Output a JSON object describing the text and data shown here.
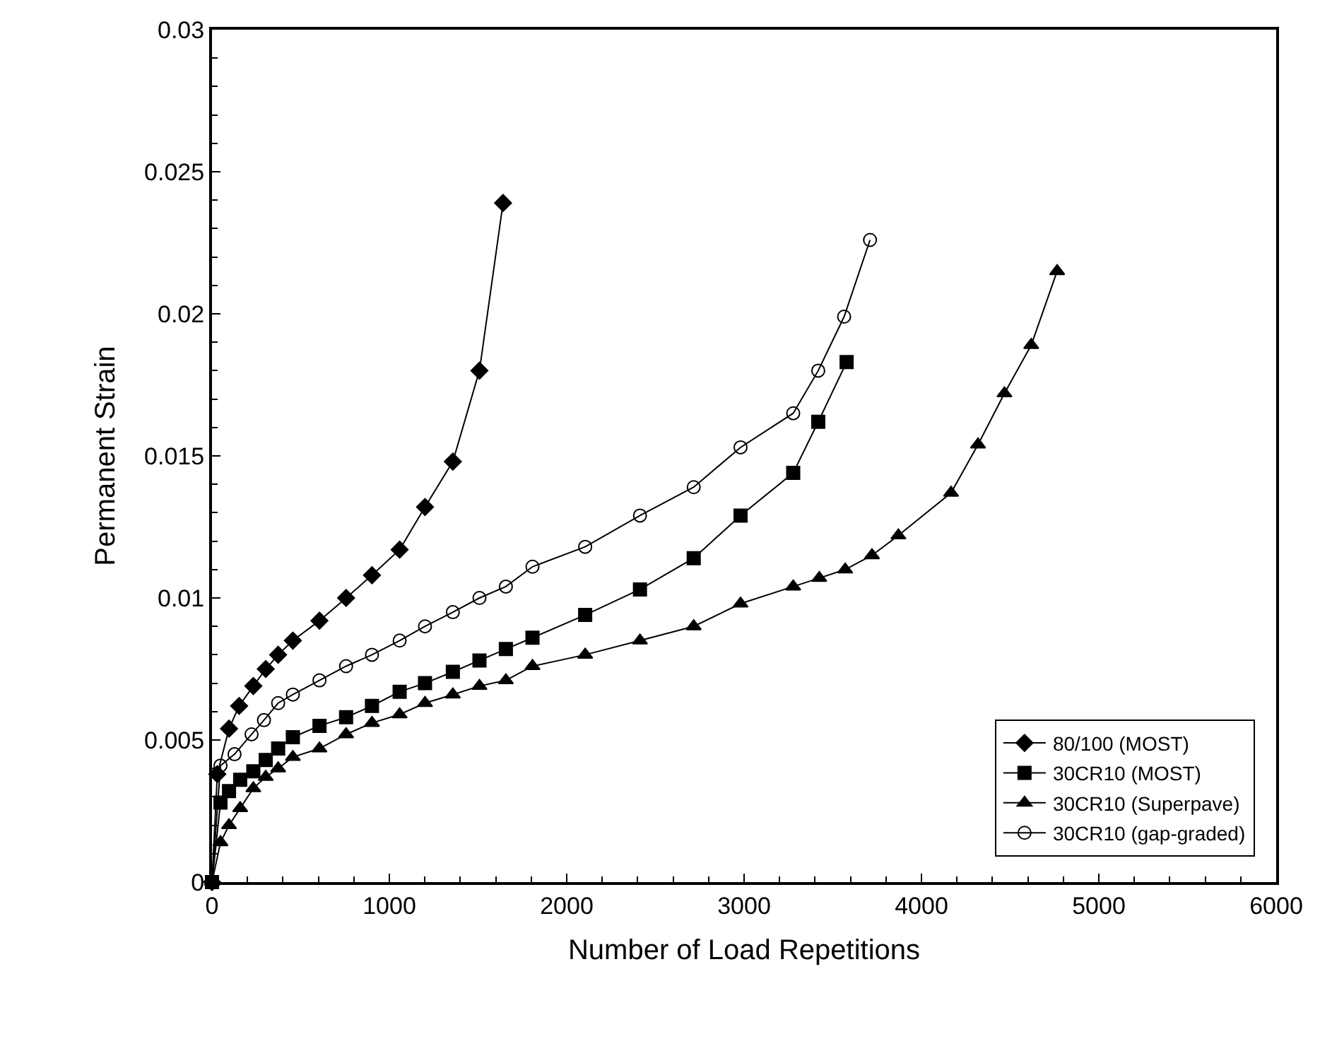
{
  "chart_data": {
    "type": "line",
    "xlabel": "Number of Load Repetitions",
    "ylabel": "Permanent Strain",
    "xlim": [
      0,
      6000
    ],
    "xticks": [
      0,
      1000,
      2000,
      3000,
      4000,
      5000,
      6000
    ],
    "ylim": [
      0,
      0.03
    ],
    "yticks": [
      0,
      0.005,
      0.01,
      0.015,
      0.02,
      0.025,
      0.03
    ],
    "grid": false,
    "legend": "bottom right",
    "line_style": "solid",
    "series": [
      {
        "name": "80/100 (MOST)",
        "color": "#000000",
        "marker": "diamond",
        "x": [
          0,
          30,
          96,
          153,
          233,
          303,
          373,
          456,
          606,
          756,
          902,
          1058,
          1201,
          1358,
          1508,
          1641
        ],
        "values": [
          0,
          0.0038,
          0.0054,
          0.0062,
          0.0069,
          0.0075,
          0.008,
          0.0085,
          0.0092,
          0.01,
          0.0108,
          0.0117,
          0.0132,
          0.0148,
          0.018,
          0.0239
        ]
      },
      {
        "name": "30CR10 (MOST)",
        "color": "#000000",
        "marker": "square",
        "x": [
          0,
          48,
          96,
          159,
          233,
          303,
          373,
          456,
          606,
          756,
          902,
          1058,
          1201,
          1358,
          1508,
          1657,
          1807,
          2104,
          2413,
          2716,
          2980,
          3277,
          3418,
          3578
        ],
        "values": [
          0,
          0.0028,
          0.0032,
          0.0036,
          0.0039,
          0.0043,
          0.0047,
          0.0051,
          0.0055,
          0.0058,
          0.0062,
          0.0067,
          0.007,
          0.0074,
          0.0078,
          0.0082,
          0.0086,
          0.0094,
          0.0103,
          0.0114,
          0.0129,
          0.0144,
          0.0162,
          0.0183
        ]
      },
      {
        "name": "30CR10 (Superpave)",
        "color": "#000000",
        "marker": "triangle",
        "x": [
          0,
          48,
          96,
          159,
          233,
          303,
          373,
          456,
          606,
          756,
          902,
          1058,
          1201,
          1358,
          1508,
          1657,
          1807,
          2104,
          2413,
          2716,
          2980,
          3277,
          3424,
          3570,
          3721,
          3870,
          4167,
          4319,
          4468,
          4619,
          4765
        ],
        "values": [
          0,
          0.0014,
          0.002,
          0.0026,
          0.0033,
          0.0037,
          0.004,
          0.0044,
          0.0047,
          0.0052,
          0.0056,
          0.0059,
          0.0063,
          0.0066,
          0.0069,
          0.0071,
          0.0076,
          0.008,
          0.0085,
          0.009,
          0.0098,
          0.0104,
          0.0107,
          0.011,
          0.0115,
          0.0122,
          0.0137,
          0.0154,
          0.0172,
          0.0189,
          0.0215
        ]
      },
      {
        "name": "30CR10 (gap-graded)",
        "color": "#000000",
        "marker": "circle-open",
        "x": [
          0,
          48,
          127,
          223,
          293,
          373,
          456,
          606,
          756,
          902,
          1058,
          1201,
          1358,
          1508,
          1657,
          1807,
          2104,
          2413,
          2716,
          2980,
          3277,
          3418,
          3564,
          3710
        ],
        "values": [
          0,
          0.0041,
          0.0045,
          0.0052,
          0.0057,
          0.0063,
          0.0066,
          0.0071,
          0.0076,
          0.008,
          0.0085,
          0.009,
          0.0095,
          0.01,
          0.0104,
          0.0111,
          0.0118,
          0.0129,
          0.0139,
          0.0153,
          0.0165,
          0.018,
          0.0199,
          0.0226
        ]
      }
    ]
  }
}
